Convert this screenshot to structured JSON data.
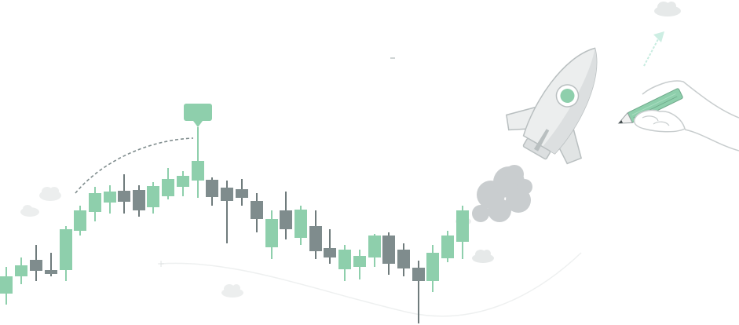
{
  "illustration": {
    "subject": "candlestick-chart-with-rocket",
    "colors": {
      "up": "#8ecfac",
      "down": "#7f8c8d",
      "wick_up": "#8ecfac",
      "wick_down": "#6f7b7c",
      "cloud": "#e9ecec",
      "smoke": "#c9cdcf",
      "rocket_body": "#eceeee",
      "rocket_outline": "#b9bfc0",
      "rocket_window": "#8ecfac",
      "pencil": "#8ecfac",
      "hand_outline": "#c8cdce",
      "dashed": "#7f8c8d"
    },
    "icons": [
      "rocket-icon",
      "hand-with-pencil-icon",
      "cloud-icon",
      "speech-bubble-icon",
      "arrow-up-icon"
    ]
  }
}
